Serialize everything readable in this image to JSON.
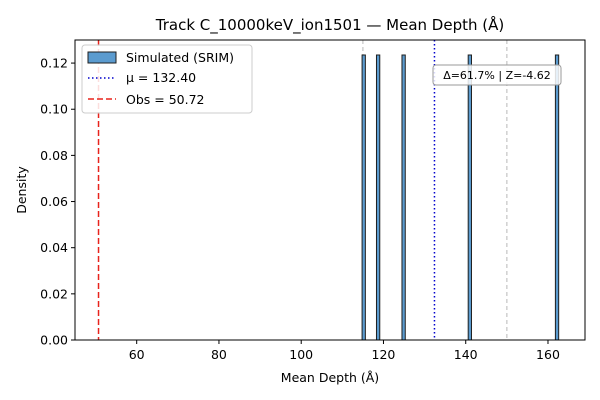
{
  "chart_data": {
    "type": "bar",
    "title": "Track C_10000keV_ion1501 — Mean Depth (Å)",
    "xlabel": "Mean Depth (Å)",
    "ylabel": "Density",
    "xlim": [
      45,
      169
    ],
    "ylim": [
      0,
      0.13
    ],
    "grid": false,
    "legend_position": "upper-left",
    "x_ticks": [
      60,
      80,
      100,
      120,
      140,
      160
    ],
    "y_ticks": [
      0.0,
      0.02,
      0.04,
      0.06,
      0.08,
      0.1,
      0.12
    ],
    "x_tick_labels": [
      "60",
      "80",
      "100",
      "120",
      "140",
      "160"
    ],
    "y_tick_labels": [
      "0.00",
      "0.02",
      "0.04",
      "0.06",
      "0.08",
      "0.10",
      "0.12"
    ],
    "histogram": {
      "name": "Simulated (SRIM)",
      "color": "#5b9bcf",
      "edge_color": "#1f1f1f",
      "bins": [
        {
          "x0": 114.8,
          "x1": 115.6,
          "density": 0.1235
        },
        {
          "x0": 118.3,
          "x1": 119.1,
          "density": 0.1235
        },
        {
          "x0": 124.5,
          "x1": 125.3,
          "density": 0.1235
        },
        {
          "x0": 140.6,
          "x1": 141.4,
          "density": 0.1235
        },
        {
          "x0": 161.8,
          "x1": 162.6,
          "density": 0.1235
        }
      ]
    },
    "mean_line": {
      "name": "μ = 132.40",
      "x": 132.4,
      "color": "#0000cc",
      "style": "dotted"
    },
    "obs_line": {
      "name": "Obs = 50.72",
      "x": 50.72,
      "color": "#e8231c",
      "style": "dashed"
    },
    "reference_lines": [
      {
        "x": 115.0,
        "color": "#c4c4c4",
        "style": "dashed"
      },
      {
        "x": 150.0,
        "color": "#c4c4c4",
        "style": "dashed"
      }
    ],
    "annotation": {
      "text": "Δ=61.7% | Z=-4.62"
    }
  }
}
